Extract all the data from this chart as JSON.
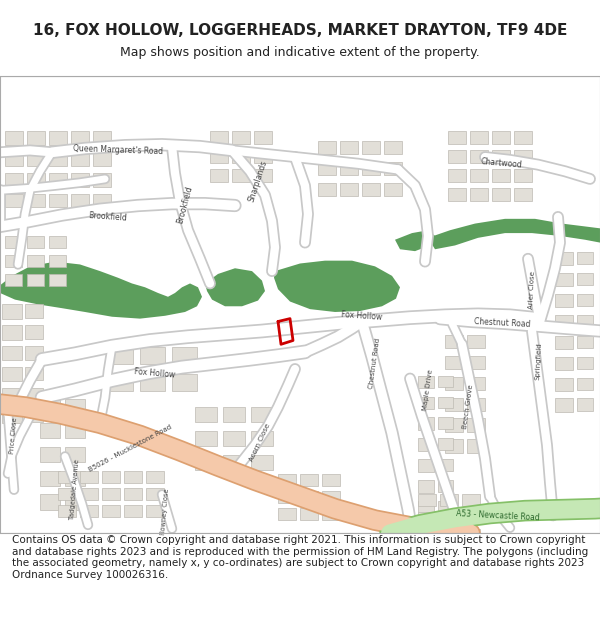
{
  "title": "16, FOX HOLLOW, LOGGERHEADS, MARKET DRAYTON, TF9 4DE",
  "subtitle": "Map shows position and indicative extent of the property.",
  "footer": "Contains OS data © Crown copyright and database right 2021. This information is subject to Crown copyright and database rights 2023 and is reproduced with the permission of HM Land Registry. The polygons (including the associated geometry, namely x, y co-ordinates) are subject to Crown copyright and database rights 2023 Ordnance Survey 100026316.",
  "title_fontsize": 11,
  "subtitle_fontsize": 9,
  "footer_fontsize": 7.5
}
